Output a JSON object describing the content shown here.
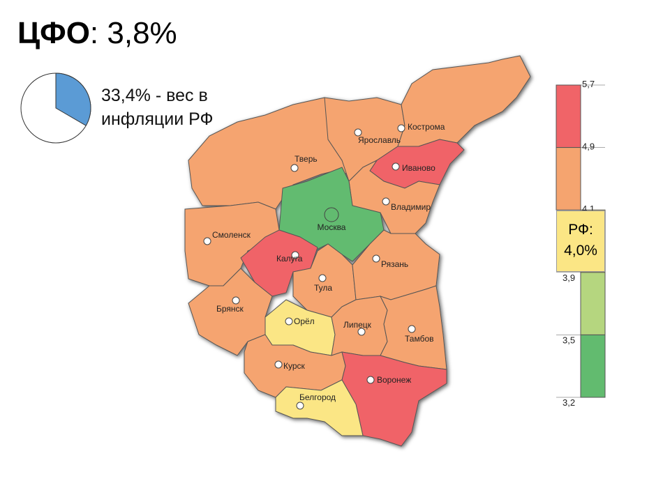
{
  "title": {
    "bold": "ЦФО",
    "rest": ": 3,8%"
  },
  "share": {
    "percent": 33.4,
    "caption": "33,4% - вес в инфляции РФ",
    "color": "#5b9bd5"
  },
  "legend": {
    "ticks": [
      {
        "value": 5.7,
        "label": "5,7"
      },
      {
        "value": 4.9,
        "label": "4,9"
      },
      {
        "value": 4.1,
        "label": "4,1"
      },
      {
        "value": 3.9,
        "label": "3,9"
      },
      {
        "value": 3.5,
        "label": "3,5"
      },
      {
        "value": 3.2,
        "label": "3,2"
      }
    ],
    "colors": [
      "#f06468",
      "#f5a46f",
      "#fbe685",
      "#b5d67f",
      "#62bb6f"
    ]
  },
  "rf": {
    "label": "РФ:",
    "value": "4,0%"
  },
  "regions": [
    {
      "name": "Тверь",
      "color": "#f5a46f"
    },
    {
      "name": "Ярославль",
      "color": "#f5a46f"
    },
    {
      "name": "Кострома",
      "color": "#f5a46f"
    },
    {
      "name": "Иваново",
      "color": "#f06468"
    },
    {
      "name": "Владимир",
      "color": "#f5a46f"
    },
    {
      "name": "Москва",
      "color": "#62bb6f"
    },
    {
      "name": "Смоленск",
      "color": "#f5a46f"
    },
    {
      "name": "Калуга",
      "color": "#f06468"
    },
    {
      "name": "Тула",
      "color": "#f5a46f"
    },
    {
      "name": "Рязань",
      "color": "#f5a46f"
    },
    {
      "name": "Брянск",
      "color": "#f5a46f"
    },
    {
      "name": "Орёл",
      "color": "#fbe685"
    },
    {
      "name": "Липецк",
      "color": "#f5a46f"
    },
    {
      "name": "Тамбов",
      "color": "#f5a46f"
    },
    {
      "name": "Курск",
      "color": "#f5a46f"
    },
    {
      "name": "Воронеж",
      "color": "#f06468"
    },
    {
      "name": "Белгород",
      "color": "#fbe685"
    }
  ]
}
